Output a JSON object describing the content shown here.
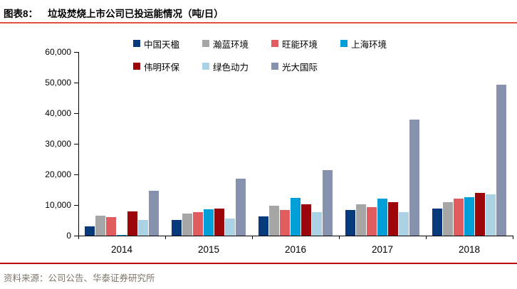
{
  "figure": {
    "label": "图表8：",
    "title": "垃圾焚烧上市公司已投运能情况（吨/日）",
    "source": "资料来源：公司公告、华泰证券研究所"
  },
  "colors": {
    "rule_top": "#E2503C",
    "rule_bottom": "#C00000",
    "source_text": "#7F756A",
    "axis": "#000000"
  },
  "chart_data": {
    "type": "bar",
    "title": "垃圾焚烧上市公司已投运能情况（吨/日）",
    "xlabel": "",
    "ylabel": "",
    "categories": [
      "2014",
      "2015",
      "2016",
      "2017",
      "2018"
    ],
    "series": [
      {
        "name": "中国天楹",
        "color": "#08397A",
        "values": [
          3000,
          5200,
          6300,
          8300,
          8900
        ]
      },
      {
        "name": "瀚蓝环境",
        "color": "#A6A6A6",
        "values": [
          6500,
          7100,
          9800,
          10300,
          11000
        ]
      },
      {
        "name": "旺能环境",
        "color": "#E05C5E",
        "values": [
          6000,
          7600,
          8400,
          9300,
          12000
        ]
      },
      {
        "name": "上海环境",
        "color": "#009FD8",
        "values": [
          300,
          8500,
          12300,
          12200,
          12500
        ]
      },
      {
        "name": "伟明环保",
        "color": "#9C0509",
        "values": [
          8000,
          8900,
          10300,
          11000,
          14000
        ]
      },
      {
        "name": "绿色动力",
        "color": "#ABD2E4",
        "values": [
          5000,
          5600,
          7700,
          7700,
          13600
        ]
      },
      {
        "name": "光大国际",
        "color": "#8591AD",
        "values": [
          14700,
          18500,
          21300,
          38000,
          49300
        ]
      }
    ],
    "ylim": [
      0,
      60000
    ],
    "ytick_step": 10000,
    "ytick_labels": [
      "0",
      "10,000",
      "20,000",
      "30,000",
      "40,000",
      "50,000",
      "60,000"
    ],
    "grid": false,
    "legend_position": "top-two-rows"
  }
}
